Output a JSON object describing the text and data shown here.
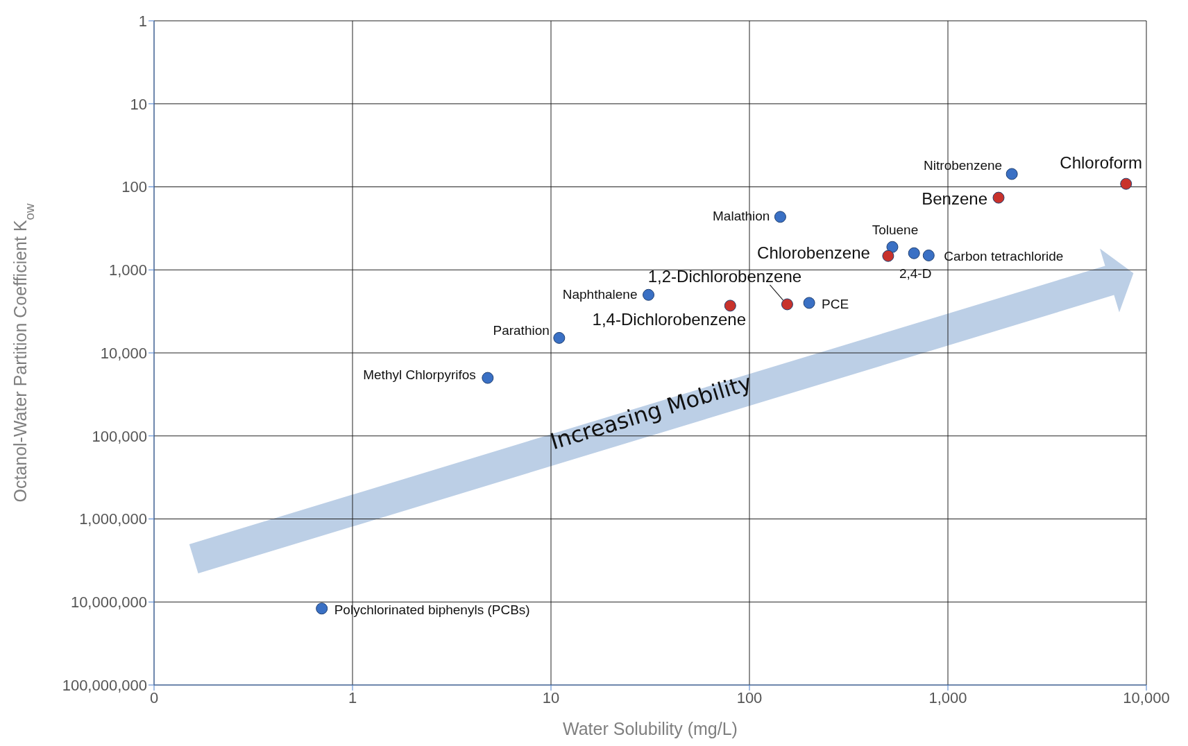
{
  "chart_data": {
    "type": "scatter",
    "xlabel": "Water Solubility (mg/L)",
    "ylabel": "Octanol-Water Partition Coefficient K$_{ow}$",
    "log": "xy",
    "grid": true,
    "marker": "circle",
    "xlim": [
      0.1,
      10000
    ],
    "xticks": [
      {
        "value": 0.1,
        "label": "0"
      },
      1,
      10,
      100,
      {
        "value": 1000,
        "label": "1,000"
      },
      {
        "value": 10000,
        "label": "10,000"
      }
    ],
    "ylim": [
      100000000,
      1
    ],
    "yticks": [
      1,
      10,
      100,
      {
        "value": 1000,
        "label": "1,000"
      },
      {
        "value": 10000,
        "label": "10,000"
      },
      {
        "value": 100000,
        "label": "100,000"
      },
      {
        "value": 1000000,
        "label": "1,000,000"
      },
      {
        "value": 10000000,
        "label": "10,000,000"
      },
      {
        "value": 100000000,
        "label": "100,000,000"
      }
    ],
    "series": [
      {
        "color": "#3a70c4",
        "x": [
          0.7,
          4.8,
          11,
          31,
          143,
          200,
          525,
          675,
          800,
          2100
        ],
        "values": [
          12000000,
          20000,
          6600,
          2000,
          230,
          2500,
          530,
          630,
          670,
          70
        ]
      },
      {
        "color": "#c8322c",
        "x": [
          80,
          155,
          500,
          1800,
          7900
        ],
        "values": [
          2700,
          2600,
          680,
          135,
          92
        ]
      }
    ],
    "annotations": [
      {
        "text": "Polychlorinated biphenyls (PCBs)",
        "x": 0.7,
        "y": 12000000
      },
      {
        "text": "Methyl Chlorpyrifos",
        "x": 4.8,
        "y": 20000
      },
      {
        "text": "Parathion",
        "x": 11,
        "y": 6600
      },
      {
        "text": "Naphthalene",
        "x": 31,
        "y": 2000
      },
      {
        "text": "Malathion",
        "x": 143,
        "y": 230
      },
      {
        "text": "PCE",
        "x": 200,
        "y": 2500
      },
      {
        "text": "Toluene",
        "x": 525,
        "y": 530
      },
      {
        "text": "2,4-D",
        "x": 675,
        "y": 630
      },
      {
        "text": "Carbon tetrachloride",
        "x": 800,
        "y": 670
      },
      {
        "text": "Nitrobenzene",
        "x": 2100,
        "y": 70
      },
      {
        "text": "1,4-Dichlorobenzene",
        "x": 80,
        "y": 2700
      },
      {
        "text": "1,2-Dichlorobenzene",
        "x": 155,
        "y": 2600
      },
      {
        "text": "Chlorobenzene",
        "x": 500,
        "y": 680
      },
      {
        "text": "Benzene",
        "x": 1800,
        "y": 135
      },
      {
        "text": "Chloroform",
        "x": 7900,
        "y": 92
      },
      "Increasing Mobility"
    ]
  }
}
